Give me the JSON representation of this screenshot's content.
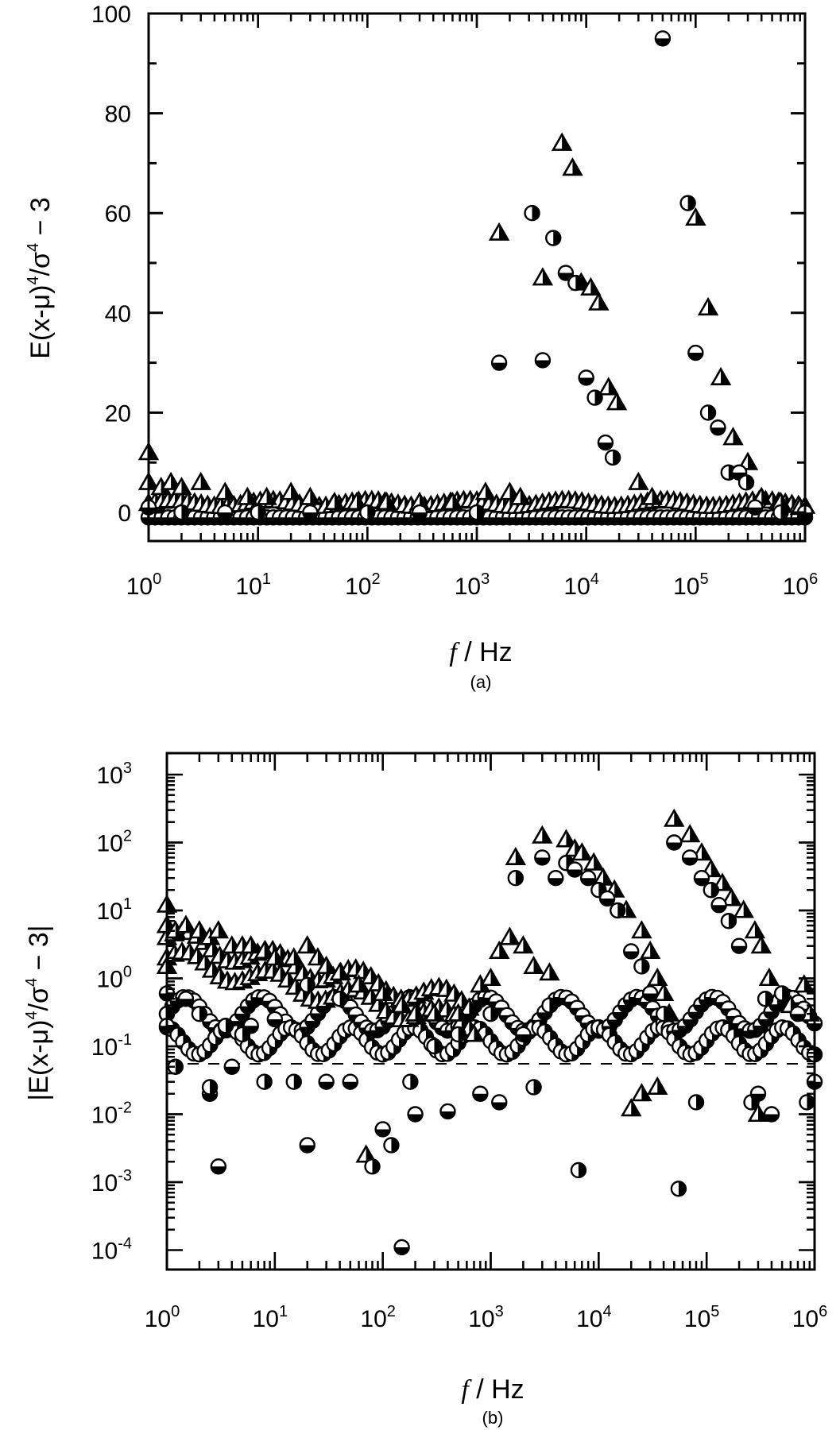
{
  "figure": {
    "panels": [
      {
        "id": "a",
        "panel_label": "(a)",
        "ylabel": "E(x-μ)⁴/σ⁴ − 3",
        "ylabel_parts": {
          "base": "E(x-μ)",
          "sup1": "4",
          "mid": "/σ",
          "sup2": "4",
          "tail": " − 3"
        },
        "xlabel_italic": "f",
        "xlabel_rest": " / Hz",
        "yticks": [
          "0",
          "20",
          "40",
          "60",
          "80",
          "100"
        ],
        "xticks": [
          {
            "base": "10",
            "exp": "0"
          },
          {
            "base": "10",
            "exp": "1"
          },
          {
            "base": "10",
            "exp": "2"
          },
          {
            "base": "10",
            "exp": "3"
          },
          {
            "base": "10",
            "exp": "4"
          },
          {
            "base": "10",
            "exp": "5"
          },
          {
            "base": "10",
            "exp": "6"
          }
        ]
      },
      {
        "id": "b",
        "panel_label": "(b)",
        "ylabel": "|E(x-μ)⁴/σ⁴ − 3|",
        "ylabel_parts": {
          "base": "|E(x-μ)",
          "sup1": "4",
          "mid": "/σ",
          "sup2": "4",
          "tail": " − 3|"
        },
        "xlabel_italic": "f",
        "xlabel_rest": " / Hz",
        "yticks": [
          {
            "base": "10",
            "exp": "-4"
          },
          {
            "base": "10",
            "exp": "-3"
          },
          {
            "base": "10",
            "exp": "-2"
          },
          {
            "base": "10",
            "exp": "-1"
          },
          {
            "base": "10",
            "exp": "0"
          },
          {
            "base": "10",
            "exp": "1"
          },
          {
            "base": "10",
            "exp": "2"
          },
          {
            "base": "10",
            "exp": "3"
          }
        ],
        "xticks": [
          {
            "base": "10",
            "exp": "0"
          },
          {
            "base": "10",
            "exp": "1"
          },
          {
            "base": "10",
            "exp": "2"
          },
          {
            "base": "10",
            "exp": "3"
          },
          {
            "base": "10",
            "exp": "4"
          },
          {
            "base": "10",
            "exp": "5"
          },
          {
            "base": "10",
            "exp": "6"
          }
        ]
      }
    ]
  },
  "chart_data": [
    {
      "type": "scatter",
      "title": "(a)",
      "xlabel": "f / Hz",
      "ylabel": "E(x-μ)^4/σ^4 − 3",
      "xscale": "log",
      "xlim": [
        1,
        1000000
      ],
      "ylim": [
        -5,
        100
      ],
      "grid": false,
      "legend": null,
      "series": [
        {
          "name": "triangles (half-filled)",
          "marker": "triangle",
          "points": [
            [
              1,
              12
            ],
            [
              1,
              6
            ],
            [
              1.3,
              5
            ],
            [
              1.6,
              6
            ],
            [
              2,
              5
            ],
            [
              3,
              6
            ],
            [
              5,
              4
            ],
            [
              8,
              3
            ],
            [
              12,
              3
            ],
            [
              20,
              4
            ],
            [
              30,
              3
            ],
            [
              50,
              2
            ],
            [
              80,
              2
            ],
            [
              150,
              2
            ],
            [
              300,
              2
            ],
            [
              600,
              2
            ],
            [
              1200,
              4
            ],
            [
              1600,
              56
            ],
            [
              2000,
              4
            ],
            [
              2500,
              3
            ],
            [
              4000,
              47
            ],
            [
              6000,
              74
            ],
            [
              7500,
              69
            ],
            [
              9000,
              46
            ],
            [
              11000,
              45
            ],
            [
              13000,
              42
            ],
            [
              16000,
              25
            ],
            [
              19000,
              22
            ],
            [
              30000,
              6
            ],
            [
              40000,
              3
            ],
            [
              100000,
              59
            ],
            [
              130000,
              41
            ],
            [
              170000,
              27
            ],
            [
              220000,
              15
            ],
            [
              300000,
              10
            ],
            [
              400000,
              3
            ],
            [
              600000,
              2
            ],
            [
              900000,
              1
            ]
          ]
        },
        {
          "name": "circles (half-filled)",
          "marker": "circle",
          "points": [
            [
              1,
              1
            ],
            [
              2,
              0
            ],
            [
              5,
              0
            ],
            [
              10,
              0
            ],
            [
              30,
              0
            ],
            [
              100,
              0
            ],
            [
              300,
              0
            ],
            [
              1000,
              0
            ],
            [
              1600,
              30
            ],
            [
              3200,
              60
            ],
            [
              4000,
              30.5
            ],
            [
              5000,
              55
            ],
            [
              6500,
              48
            ],
            [
              8000,
              46
            ],
            [
              10000,
              27
            ],
            [
              12000,
              23
            ],
            [
              15000,
              14
            ],
            [
              17500,
              11
            ],
            [
              50000,
              95
            ],
            [
              85000,
              62
            ],
            [
              100000,
              32
            ],
            [
              130000,
              20
            ],
            [
              160000,
              17
            ],
            [
              200000,
              8
            ],
            [
              250000,
              8
            ],
            [
              290000,
              6
            ],
            [
              350000,
              1
            ],
            [
              600000,
              0
            ],
            [
              1000000,
              0
            ]
          ]
        }
      ]
    },
    {
      "type": "scatter",
      "title": "(b)",
      "xlabel": "f / Hz",
      "ylabel": "|E(x-μ)^4/σ^4 − 3|",
      "xscale": "log",
      "yscale": "log",
      "xlim": [
        1,
        1000000
      ],
      "ylim": [
        5e-05,
        1000
      ],
      "grid": false,
      "reference_line": {
        "style": "dashed",
        "y": 0.05
      },
      "legend": null,
      "series": [
        {
          "name": "triangles (half-filled)",
          "marker": "triangle",
          "points": [
            [
              1,
              12
            ],
            [
              1,
              6
            ],
            [
              1,
              1.5
            ],
            [
              1.2,
              5
            ],
            [
              1.5,
              6
            ],
            [
              2,
              5
            ],
            [
              2.5,
              4
            ],
            [
              3,
              5
            ],
            [
              4,
              3
            ],
            [
              5,
              3
            ],
            [
              6,
              3
            ],
            [
              8,
              2.5
            ],
            [
              10,
              2
            ],
            [
              15,
              2
            ],
            [
              20,
              3
            ],
            [
              25,
              2
            ],
            [
              30,
              1.5
            ],
            [
              40,
              1.2
            ],
            [
              60,
              0.8
            ],
            [
              70,
              0.0025
            ],
            [
              100,
              0.6
            ],
            [
              150,
              0.4
            ],
            [
              200,
              0.3
            ],
            [
              300,
              0.3
            ],
            [
              500,
              0.3
            ],
            [
              700,
              0.15
            ],
            [
              800,
              0.8
            ],
            [
              1000,
              1.0
            ],
            [
              1200,
              2.5
            ],
            [
              1500,
              4
            ],
            [
              1700,
              60
            ],
            [
              2000,
              3
            ],
            [
              2500,
              1.5
            ],
            [
              3000,
              125
            ],
            [
              3500,
              1.2
            ],
            [
              5000,
              110
            ],
            [
              6000,
              80
            ],
            [
              7000,
              70
            ],
            [
              9000,
              50
            ],
            [
              11000,
              30
            ],
            [
              14000,
              20
            ],
            [
              18000,
              10
            ],
            [
              25000,
              5
            ],
            [
              30000,
              2.5
            ],
            [
              35000,
              1.0
            ],
            [
              40000,
              0.6
            ],
            [
              45000,
              0.3
            ],
            [
              20000,
              0.012
            ],
            [
              25000,
              0.02
            ],
            [
              35000,
              0.025
            ],
            [
              50000,
              220
            ],
            [
              70000,
              130
            ],
            [
              90000,
              70
            ],
            [
              110000,
              40
            ],
            [
              140000,
              25
            ],
            [
              170000,
              15
            ],
            [
              220000,
              10
            ],
            [
              280000,
              5
            ],
            [
              320000,
              3
            ],
            [
              380000,
              1.0
            ],
            [
              450000,
              0.5
            ],
            [
              600000,
              0.4
            ],
            [
              800000,
              0.8
            ],
            [
              900000,
              0.3
            ],
            [
              300000,
              0.01
            ]
          ]
        },
        {
          "name": "circles (half-filled)",
          "marker": "circle",
          "points": [
            [
              1,
              0.6
            ],
            [
              1,
              0.3
            ],
            [
              1,
              0.2
            ],
            [
              1.2,
              0.05
            ],
            [
              1.5,
              0.5
            ],
            [
              2,
              0.3
            ],
            [
              2.5,
              0.02
            ],
            [
              2.5,
              0.025
            ],
            [
              3,
              0.0017
            ],
            [
              3.5,
              0.2
            ],
            [
              4,
              0.05
            ],
            [
              5,
              0.15
            ],
            [
              6,
              0.2
            ],
            [
              8,
              0.03
            ],
            [
              10,
              0.25
            ],
            [
              15,
              0.03
            ],
            [
              20,
              0.0035
            ],
            [
              20,
              0.8
            ],
            [
              30,
              0.03
            ],
            [
              40,
              0.5
            ],
            [
              50,
              0.03
            ],
            [
              80,
              0.0017
            ],
            [
              100,
              0.006
            ],
            [
              120,
              0.0035
            ],
            [
              150,
              0.00011
            ],
            [
              180,
              0.03
            ],
            [
              200,
              0.01
            ],
            [
              300,
              0.1
            ],
            [
              400,
              0.011
            ],
            [
              500,
              0.15
            ],
            [
              800,
              0.02
            ],
            [
              1000,
              0.3
            ],
            [
              1200,
              0.015
            ],
            [
              1700,
              30
            ],
            [
              2000,
              0.15
            ],
            [
              2500,
              0.025
            ],
            [
              3000,
              60
            ],
            [
              3500,
              0.4
            ],
            [
              4000,
              30
            ],
            [
              5000,
              50
            ],
            [
              6000,
              40
            ],
            [
              6500,
              0.0015
            ],
            [
              8000,
              30
            ],
            [
              10000,
              20
            ],
            [
              12000,
              15
            ],
            [
              15000,
              10
            ],
            [
              20000,
              2.5
            ],
            [
              25000,
              1.5
            ],
            [
              30000,
              0.6
            ],
            [
              40000,
              0.3
            ],
            [
              50000,
              100
            ],
            [
              55000,
              0.0008
            ],
            [
              70000,
              60
            ],
            [
              80000,
              0.015
            ],
            [
              90000,
              30
            ],
            [
              110000,
              20
            ],
            [
              130000,
              12
            ],
            [
              160000,
              7
            ],
            [
              200000,
              3
            ],
            [
              260000,
              0.015
            ],
            [
              300000,
              0.02
            ],
            [
              350000,
              0.5
            ],
            [
              400000,
              0.01
            ],
            [
              500000,
              0.6
            ],
            [
              700000,
              0.3
            ],
            [
              850000,
              0.015
            ],
            [
              1000000,
              0.03
            ]
          ]
        }
      ]
    }
  ]
}
